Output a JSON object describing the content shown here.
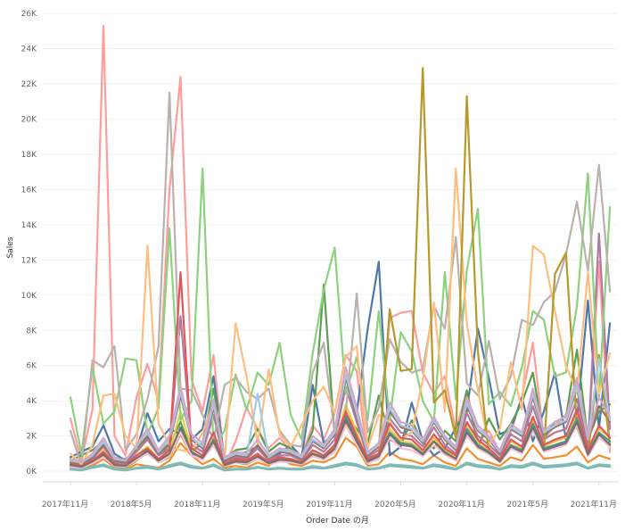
{
  "chart_data": {
    "type": "line",
    "title": "",
    "xlabel": "Order Date の月",
    "ylabel": "Sales",
    "x_ticks": [
      "2017年11月",
      "2018年5月",
      "2018年11月",
      "2019年5月",
      "2019年11月",
      "2020年5月",
      "2020年11月",
      "2021年5月",
      "2021年11月"
    ],
    "y_ticks": [
      "0K",
      "2K",
      "4K",
      "6K",
      "8K",
      "10K",
      "12K",
      "14K",
      "16K",
      "18K",
      "20K",
      "22K",
      "24K",
      "26K"
    ],
    "ylim": [
      -600,
      26000
    ],
    "grid": true,
    "legend": "none",
    "x": [
      "2017-11",
      "2017-12",
      "2018-01",
      "2018-02",
      "2018-03",
      "2018-04",
      "2018-05",
      "2018-06",
      "2018-07",
      "2018-08",
      "2018-09",
      "2018-10",
      "2018-11",
      "2018-12",
      "2019-01",
      "2019-02",
      "2019-03",
      "2019-04",
      "2019-05",
      "2019-06",
      "2019-07",
      "2019-08",
      "2019-09",
      "2019-10",
      "2019-11",
      "2019-12",
      "2020-01",
      "2020-02",
      "2020-03",
      "2020-04",
      "2020-05",
      "2020-06",
      "2020-07",
      "2020-08",
      "2020-09",
      "2020-10",
      "2020-11",
      "2020-12",
      "2021-01",
      "2021-02",
      "2021-03",
      "2021-04",
      "2021-05",
      "2021-06",
      "2021-07",
      "2021-08",
      "2021-09",
      "2021-10",
      "2021-11",
      "2021-12"
    ],
    "series": [
      {
        "color": "#ff9d9a",
        "values": [
          3000,
          600,
          3500,
          25300,
          2000,
          900,
          4200,
          6100,
          4000,
          16000,
          22400,
          5200,
          3400,
          6600,
          300,
          1700,
          3600,
          2400,
          1300,
          1900,
          1200,
          900,
          2600,
          1800,
          3300,
          6600,
          5700,
          700,
          1400,
          8700,
          9000,
          9100,
          5600,
          4400,
          5400,
          2300,
          4600,
          1600,
          2300,
          1100,
          2200,
          4200,
          7300,
          1800,
          2600,
          3200,
          5000,
          1200,
          11900,
          1100
        ]
      },
      {
        "color": "#f28e2b",
        "values": [
          200,
          100,
          300,
          700,
          200,
          100,
          400,
          300,
          200,
          600,
          1600,
          900,
          400,
          700,
          200,
          300,
          200,
          500,
          300,
          800,
          400,
          300,
          600,
          500,
          800,
          1900,
          1400,
          300,
          400,
          1100,
          700,
          600,
          400,
          900,
          500,
          300,
          1300,
          700,
          500,
          300,
          800,
          600,
          1500,
          700,
          800,
          900,
          1400,
          500,
          900,
          700
        ]
      },
      {
        "color": "#4e79a7",
        "values": [
          800,
          1100,
          1400,
          2600,
          1000,
          600,
          1200,
          3300,
          1700,
          2400,
          2100,
          1800,
          2400,
          5400,
          600,
          800,
          1100,
          1400,
          700,
          1000,
          1500,
          800,
          4900,
          1600,
          2200,
          5400,
          3300,
          8100,
          11900,
          900,
          1400,
          3900,
          1700,
          900,
          1300,
          2500,
          3400,
          8100,
          5300,
          2100,
          2400,
          4200,
          1700,
          3400,
          5600,
          1800,
          2900,
          9700,
          2400,
          8400
        ]
      },
      {
        "color": "#76b7b2",
        "values": [
          100,
          50,
          200,
          300,
          100,
          50,
          150,
          200,
          100,
          250,
          400,
          200,
          150,
          300,
          50,
          100,
          100,
          200,
          100,
          150,
          100,
          100,
          200,
          150,
          250,
          400,
          300,
          100,
          150,
          300,
          250,
          200,
          150,
          300,
          200,
          100,
          400,
          250,
          200,
          100,
          250,
          200,
          400,
          200,
          250,
          300,
          400,
          150,
          300,
          250
        ]
      },
      {
        "color": "#59a14f",
        "values": [
          600,
          900,
          1200,
          1700,
          500,
          700,
          1200,
          1900,
          900,
          1500,
          2800,
          1100,
          1600,
          4700,
          700,
          1200,
          1300,
          2400,
          1100,
          1600,
          1300,
          800,
          2300,
          10600,
          1900,
          3200,
          2400,
          1600,
          4300,
          1800,
          1500,
          2900,
          1600,
          1300,
          2300,
          1700,
          4600,
          1300,
          3000,
          1800,
          2700,
          3900,
          5600,
          1900,
          2800,
          3100,
          6900,
          1800,
          3400,
          3800
        ]
      },
      {
        "color": "#edc948",
        "values": [
          300,
          200,
          500,
          1200,
          400,
          300,
          900,
          1400,
          700,
          1100,
          3400,
          1300,
          900,
          2100,
          400,
          600,
          500,
          900,
          500,
          700,
          700,
          500,
          1100,
          900,
          1400,
          3800,
          2200,
          600,
          900,
          2400,
          1700,
          1600,
          1100,
          1900,
          1200,
          800,
          2600,
          1600,
          1200,
          700,
          1700,
          1300,
          2900,
          1400,
          1700,
          1900,
          3300,
          1100,
          2400,
          1900
        ]
      },
      {
        "color": "#b07aa1",
        "values": [
          400,
          300,
          700,
          1400,
          500,
          400,
          1100,
          1800,
          900,
          1300,
          8800,
          1500,
          1100,
          3200,
          500,
          800,
          700,
          1300,
          600,
          900,
          900,
          600,
          1500,
          1100,
          1800,
          4800,
          2800,
          800,
          1200,
          3000,
          2200,
          2000,
          1400,
          2500,
          1500,
          1000,
          3300,
          2000,
          1500,
          900,
          2100,
          1700,
          3700,
          1800,
          2200,
          2400,
          4100,
          1400,
          13500,
          2400
        ]
      },
      {
        "color": "#8cd17d",
        "values": [
          4200,
          1000,
          5900,
          2700,
          3400,
          6400,
          6300,
          2100,
          3600,
          13800,
          2900,
          4000,
          17200,
          1400,
          2300,
          5500,
          3500,
          5600,
          4900,
          7300,
          3200,
          1800,
          6700,
          10300,
          12700,
          4400,
          6500,
          2900,
          9100,
          2900,
          7900,
          6800,
          4000,
          2800,
          11300,
          4100,
          11400,
          14900,
          3800,
          4500,
          3700,
          5900,
          9100,
          8600,
          5400,
          5600,
          9400,
          16900,
          4100,
          15000
        ]
      },
      {
        "color": "#bab0ac",
        "values": [
          2300,
          300,
          6300,
          5900,
          7100,
          1200,
          2100,
          4100,
          7100,
          21500,
          4700,
          4600,
          3200,
          1800,
          4900,
          5300,
          4500,
          4100,
          4700,
          2300,
          1500,
          1400,
          5600,
          7300,
          2100,
          3300,
          10100,
          2200,
          3600,
          7500,
          6200,
          5600,
          5800,
          9400,
          8100,
          13300,
          5000,
          4300,
          7400,
          4100,
          5400,
          8600,
          8300,
          9600,
          10200,
          12300,
          15300,
          11400,
          17400,
          10200
        ]
      },
      {
        "color": "#9d7660",
        "values": [
          500,
          400,
          800,
          1500,
          600,
          500,
          1300,
          2000,
          1000,
          1600,
          4300,
          1800,
          1300,
          3600,
          600,
          900,
          800,
          1500,
          700,
          1100,
          1000,
          700,
          1700,
          1300,
          2100,
          5300,
          3100,
          900,
          1400,
          3400,
          2500,
          2300,
          1600,
          2800,
          1800,
          1200,
          3700,
          2300,
          1800,
          1000,
          2400,
          2000,
          4200,
          2100,
          2500,
          2800,
          4700,
          1700,
          3700,
          2800
        ]
      },
      {
        "color": "#ffbe7d",
        "values": [
          1000,
          400,
          1500,
          4300,
          4400,
          2000,
          1300,
          12800,
          2700,
          1500,
          1200,
          1100,
          2200,
          3900,
          700,
          8400,
          5400,
          1600,
          5800,
          2100,
          1400,
          2600,
          4000,
          4800,
          3300,
          6500,
          7100,
          1300,
          3200,
          2800,
          1800,
          2200,
          5200,
          9600,
          3400,
          17200,
          8400,
          4600,
          1500,
          2400,
          6200,
          3500,
          12800,
          12300,
          9100,
          6000,
          4500,
          11300,
          4400,
          6700
        ]
      },
      {
        "color": "#b6992d",
        "values": [
          200,
          150,
          400,
          900,
          300,
          200,
          600,
          1100,
          500,
          800,
          2100,
          900,
          700,
          1600,
          300,
          500,
          400,
          700,
          400,
          600,
          500,
          400,
          900,
          700,
          1200,
          2800,
          1700,
          500,
          800,
          9200,
          5700,
          5800,
          22900,
          3900,
          4600,
          1900,
          21300,
          6800,
          1000,
          600,
          1300,
          1100,
          2600,
          1100,
          11200,
          12400,
          2500,
          900,
          6600,
          1500
        ]
      },
      {
        "color": "#499894",
        "values": [
          300,
          200,
          500,
          1000,
          400,
          300,
          700,
          1200,
          600,
          900,
          2400,
          1000,
          800,
          1800,
          400,
          600,
          500,
          800,
          500,
          700,
          600,
          500,
          1000,
          800,
          1300,
          3100,
          1900,
          600,
          900,
          2200,
          1600,
          1500,
          1000,
          1700,
          1100,
          700,
          2400,
          1500,
          1100,
          600,
          1500,
          1200,
          2700,
          1300,
          1500,
          1700,
          3000,
          1000,
          2200,
          1700
        ]
      },
      {
        "color": "#a0cbe8",
        "values": [
          600,
          500,
          900,
          1700,
          700,
          600,
          1400,
          2200,
          1100,
          1800,
          4500,
          1900,
          1400,
          3800,
          700,
          1000,
          900,
          4400,
          800,
          1200,
          1100,
          800,
          1800,
          1400,
          2200,
          5500,
          3300,
          1000,
          1500,
          3600,
          2600,
          2400,
          1700,
          2900,
          1900,
          1300,
          3900,
          2400,
          1900,
          1100,
          2500,
          2100,
          4400,
          2200,
          2600,
          2900,
          4900,
          1800,
          6400,
          2900
        ]
      },
      {
        "color": "#86bcb6",
        "values": [
          150,
          100,
          250,
          400,
          150,
          100,
          200,
          300,
          150,
          350,
          500,
          300,
          200,
          400,
          100,
          150,
          150,
          250,
          150,
          200,
          150,
          150,
          300,
          200,
          350,
          500,
          400,
          150,
          200,
          400,
          350,
          300,
          200,
          400,
          300,
          150,
          500,
          350,
          300,
          150,
          350,
          300,
          500,
          300,
          350,
          400,
          500,
          200,
          400,
          350
        ]
      },
      {
        "color": "#e15759",
        "values": [
          400,
          300,
          600,
          1100,
          400,
          300,
          900,
          1300,
          700,
          1200,
          11300,
          1300,
          900,
          2200,
          400,
          700,
          600,
          1000,
          500,
          800,
          700,
          500,
          1200,
          900,
          1500,
          3400,
          2000,
          700,
          1000,
          2700,
          1900,
          1800,
          1200,
          2100,
          1300,
          900,
          2800,
          1800,
          1300,
          700,
          1800,
          1400,
          3100,
          1500,
          1800,
          2000,
          3500,
          1200,
          2600,
          1900
        ]
      },
      {
        "color": "#d4a6c8",
        "values": [
          700,
          500,
          1000,
          1900,
          800,
          600,
          1500,
          2400,
          1200,
          2000,
          4800,
          2100,
          1600,
          4100,
          800,
          1100,
          1000,
          1800,
          900,
          1300,
          1200,
          900,
          2000,
          1500,
          2400,
          5900,
          3600,
          1100,
          1600,
          3900,
          2800,
          2600,
          1800,
          3100,
          2000,
          1400,
          4200,
          2600,
          2000,
          1200,
          2700,
          2200,
          4700,
          2300,
          2800,
          3100,
          5300,
          1900,
          4200,
          3100
        ]
      },
      {
        "color": "#fabfd2",
        "values": [
          250,
          200,
          450,
          800,
          300,
          250,
          650,
          1000,
          500,
          850,
          2200,
          900,
          650,
          1500,
          300,
          500,
          450,
          700,
          400,
          550,
          500,
          400,
          850,
          650,
          1100,
          2600,
          1500,
          450,
          700,
          1900,
          1300,
          1200,
          850,
          1500,
          950,
          600,
          2000,
          1300,
          950,
          500,
          1300,
          1000,
          2300,
          1100,
          1300,
          1500,
          2600,
          850,
          1900,
          1400
        ]
      },
      {
        "color": "#79706e",
        "values": [
          350,
          250,
          550,
          950,
          350,
          300,
          750,
          1150,
          600,
          1000,
          2500,
          1100,
          750,
          1700,
          350,
          550,
          500,
          850,
          450,
          650,
          600,
          450,
          1000,
          750,
          1300,
          2900,
          1700,
          550,
          850,
          2100,
          1500,
          1400,
          950,
          1700,
          1050,
          700,
          2200,
          1400,
          1050,
          550,
          1400,
          1100,
          2500,
          1200,
          1400,
          1600,
          2800,
          950,
          2100,
          1500
        ]
      }
    ]
  }
}
